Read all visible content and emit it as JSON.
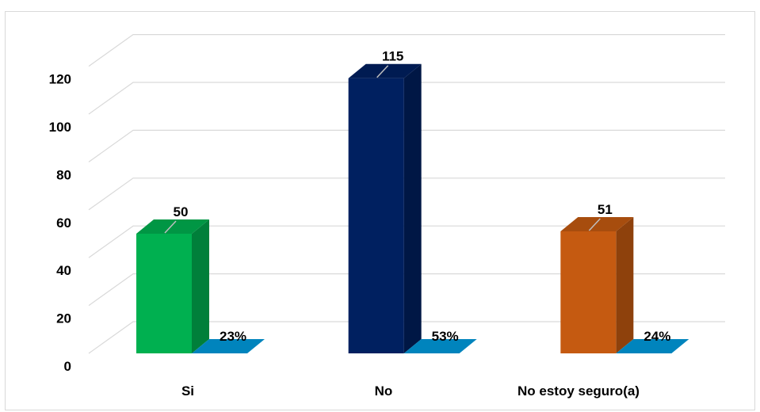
{
  "chart_data": {
    "type": "bar",
    "style": "3d-column",
    "categories": [
      "Si",
      "No",
      "No estoy seguro(a)"
    ],
    "series": [
      {
        "values": [
          50,
          115,
          51
        ],
        "colors": [
          "#00b050",
          "#002060",
          "#c55a11"
        ]
      },
      {
        "values": [
          0.23,
          0.53,
          0.24
        ],
        "colors": [
          "#0084bd",
          "#0084bd",
          "#0084bd"
        ]
      }
    ],
    "data_labels": {
      "counts": [
        "50",
        "115",
        "51"
      ],
      "percents": [
        "23%",
        "53%",
        "24%"
      ]
    },
    "y_ticks": [
      "0",
      "20",
      "40",
      "60",
      "80",
      "100",
      "120"
    ],
    "ylim": [
      0,
      120
    ],
    "grid": true,
    "legend": "none",
    "title": "",
    "xlabel": "",
    "ylabel": ""
  }
}
